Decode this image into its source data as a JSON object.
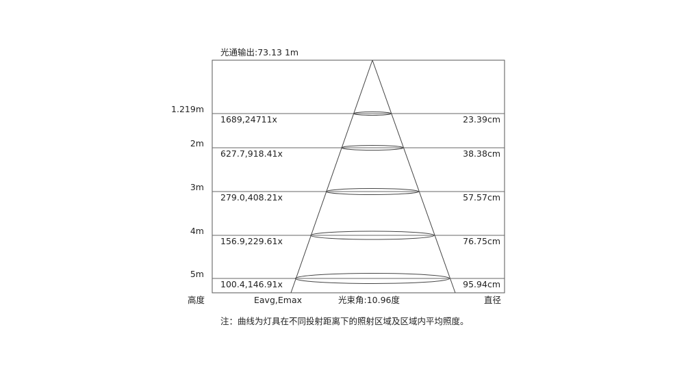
{
  "title": "光通输出:73.13  1m",
  "rows": [
    {
      "height": "1.219m",
      "lux": "1689,24711x",
      "diameter": "23.39cm"
    },
    {
      "height": "2m",
      "lux": "627.7,918.41x",
      "diameter": "38.38cm"
    },
    {
      "height": "3m",
      "lux": "279.0,408.21x",
      "diameter": "57.57cm"
    },
    {
      "height": "4m",
      "lux": "156.9,229.61x",
      "diameter": "76.75cm"
    },
    {
      "height": "5m",
      "lux": "100.4,146.91x",
      "diameter": "95.94cm"
    }
  ],
  "footer": {
    "height_label": "高度",
    "lux_label": "Eavg,Emax",
    "beam_angle": "光束角:10.96度",
    "diameter_label": "直径"
  },
  "note": "注：曲线为灯具在不同投射距离下的照射区域及区域内平均照度。",
  "colors": {
    "line": "#555555",
    "text": "#222222"
  }
}
